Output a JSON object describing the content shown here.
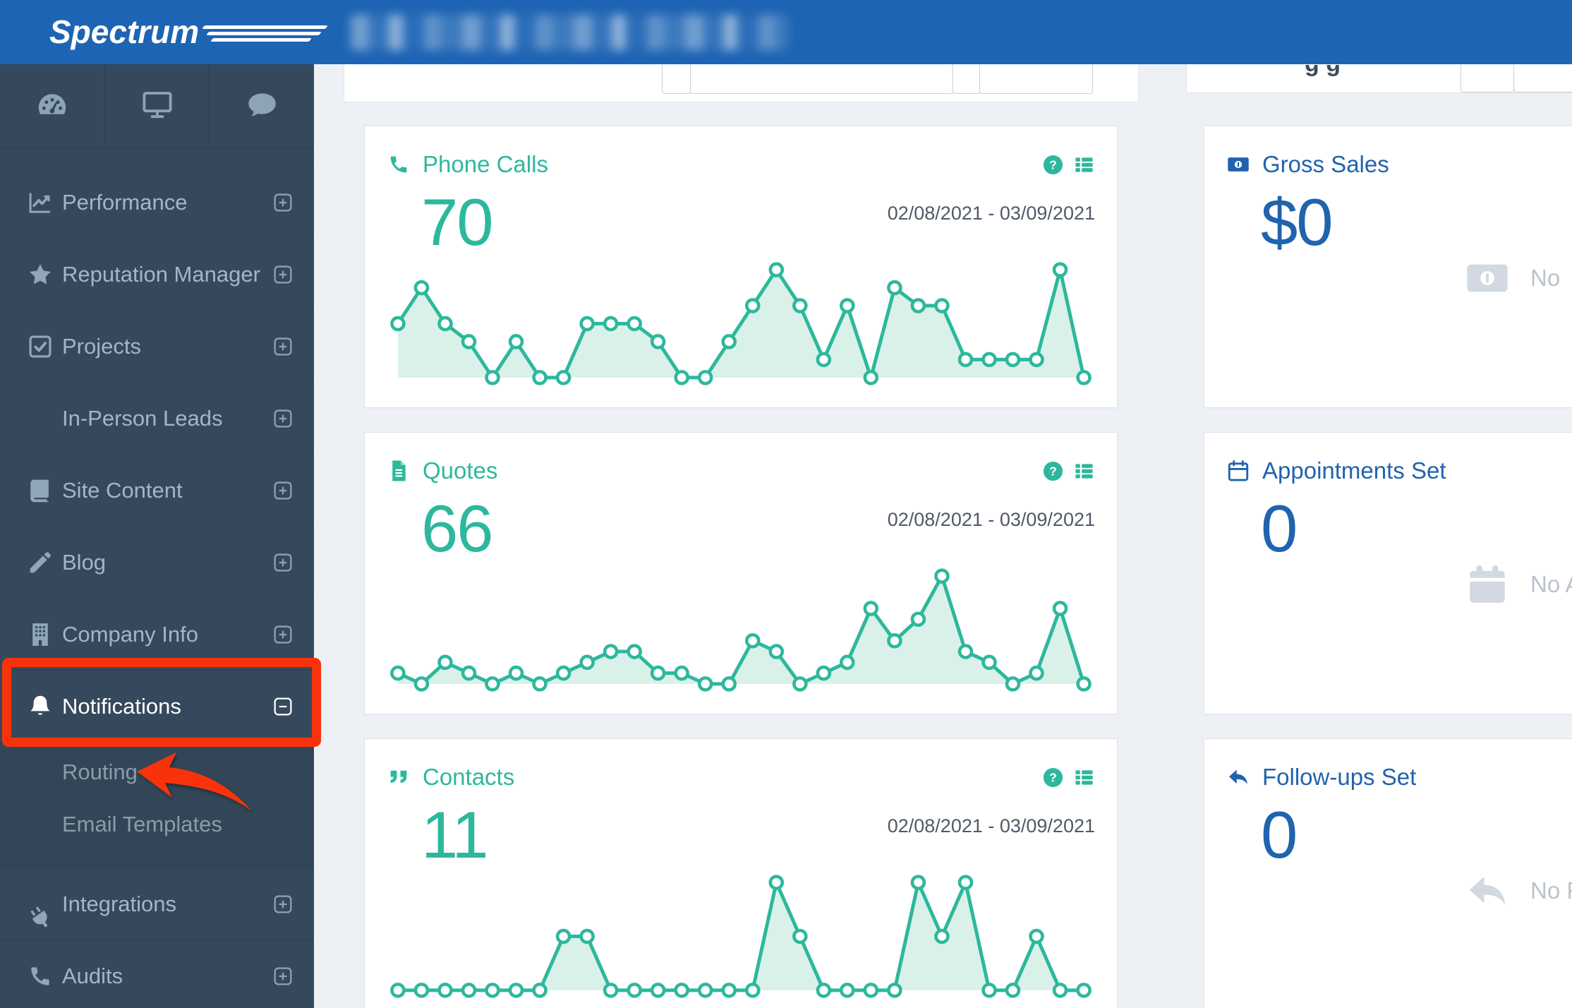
{
  "header": {
    "logo_text": "Spectrum"
  },
  "sidebar": {
    "top_icons": [
      "dashboard-gauge",
      "desktop",
      "chat-bubble"
    ],
    "items": [
      {
        "label": "Performance",
        "icon": "chart-line",
        "expander": "plus"
      },
      {
        "label": "Reputation Manager",
        "icon": "star",
        "expander": "plus"
      },
      {
        "label": "Projects",
        "icon": "check-square",
        "expander": "plus"
      },
      {
        "label": "In-Person Leads",
        "icon": null,
        "expander": "plus"
      },
      {
        "label": "Site Content",
        "icon": "book",
        "expander": "plus"
      },
      {
        "label": "Blog",
        "icon": "pencil",
        "expander": "plus"
      },
      {
        "label": "Company Info",
        "icon": "building",
        "expander": "plus"
      },
      {
        "label": "Notifications",
        "icon": "bell",
        "expander": "minus",
        "active": true
      },
      {
        "label": "Routing",
        "sub": true
      },
      {
        "label": "Email Templates",
        "sub": true
      },
      {
        "label": "Integrations",
        "icon": "plug",
        "expander": "plus"
      },
      {
        "label": "Audits",
        "icon": "phone",
        "expander": "plus"
      }
    ]
  },
  "top_fragment": {
    "heading_fragment": "g g"
  },
  "cards": [
    {
      "title": "Phone Calls",
      "icon": "phone",
      "value": "70",
      "date_range": "02/08/2021 - 03/09/2021"
    },
    {
      "title": "Quotes",
      "icon": "file-alt",
      "value": "66",
      "date_range": "02/08/2021 - 03/09/2021"
    },
    {
      "title": "Contacts",
      "icon": "quote-left",
      "value": "11",
      "date_range": "02/08/2021 - 03/09/2021"
    }
  ],
  "summary_cards": [
    {
      "title": "Gross Sales",
      "icon": "money-bill",
      "value": "$0",
      "empty_text": "No"
    },
    {
      "title": "Appointments Set",
      "icon": "calendar",
      "value": "0",
      "empty_text": "No App"
    },
    {
      "title": "Follow-ups Set",
      "icon": "reply",
      "value": "0",
      "empty_text": "No Fo"
    }
  ],
  "chart_data": [
    {
      "type": "area",
      "title": "Phone Calls",
      "total": 70,
      "date_range": "02/08/2021 - 03/09/2021",
      "points": 30,
      "values": [
        3,
        5,
        3,
        2,
        0,
        2,
        0,
        0,
        3,
        3,
        3,
        2,
        0,
        0,
        2,
        4,
        6,
        4,
        1,
        4,
        0,
        5,
        4,
        4,
        1,
        1,
        1,
        1,
        6,
        0
      ],
      "ylim": [
        0,
        6
      ],
      "grid": false,
      "markers": true,
      "color": "#2db89d",
      "fill": "#daf1ea"
    },
    {
      "type": "area",
      "title": "Quotes",
      "total": 66,
      "date_range": "02/08/2021 - 03/09/2021",
      "points": 30,
      "values": [
        1,
        0,
        2,
        1,
        0,
        1,
        0,
        1,
        2,
        3,
        3,
        1,
        1,
        0,
        0,
        4,
        3,
        0,
        1,
        2,
        7,
        4,
        6,
        10,
        3,
        2,
        0,
        1,
        7,
        0
      ],
      "ylim": [
        0,
        10
      ],
      "grid": false,
      "markers": true,
      "color": "#2db89d",
      "fill": "#daf1ea"
    },
    {
      "type": "area",
      "title": "Contacts",
      "total": 11,
      "date_range": "02/08/2021 - 03/09/2021",
      "points": 30,
      "values": [
        0,
        0,
        0,
        0,
        0,
        0,
        0,
        1,
        1,
        0,
        0,
        0,
        0,
        0,
        0,
        0,
        2,
        1,
        0,
        0,
        0,
        0,
        2,
        1,
        2,
        0,
        0,
        1,
        0,
        0
      ],
      "ylim": [
        0,
        2
      ],
      "grid": false,
      "markers": true,
      "color": "#2db89d",
      "fill": "#daf1ea"
    }
  ],
  "colors": {
    "header_blue": "#1d64b4",
    "sidebar_bg": "#36495c",
    "accent_teal": "#2db89d",
    "accent_blue": "#2063ae",
    "annotation_red": "#f8330c",
    "main_bg": "#edf1f6"
  }
}
